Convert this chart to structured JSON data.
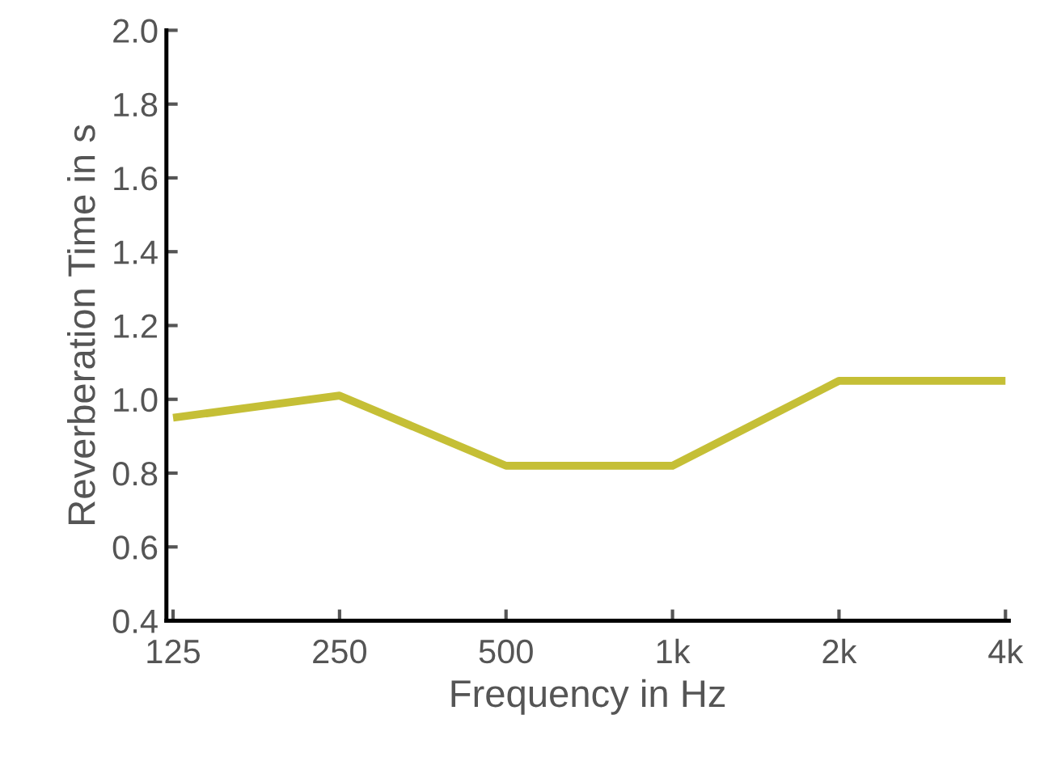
{
  "chart_data": {
    "type": "line",
    "xlabel": "Frequency in Hz",
    "ylabel": "Reverberation Time in s",
    "categories": [
      "125",
      "250",
      "500",
      "1k",
      "2k",
      "4k"
    ],
    "series": [
      {
        "color": "#c5bf36",
        "values": [
          0.95,
          1.01,
          0.82,
          0.82,
          1.05,
          1.05
        ]
      }
    ],
    "ylim": [
      0.4,
      2.0
    ],
    "yticks": [
      0.4,
      0.6,
      0.8,
      {
        "value": 1,
        "label": "1.0"
      },
      1.2,
      1.4,
      1.6,
      1.8,
      {
        "value": 2,
        "label": "2.0"
      }
    ],
    "grid": false,
    "marker": "none",
    "line_style": "solid"
  }
}
